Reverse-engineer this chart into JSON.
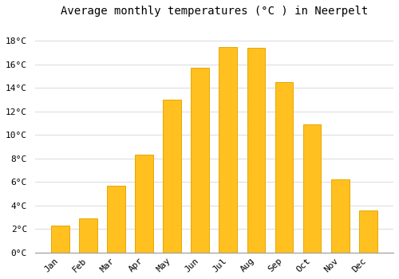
{
  "title": "Average monthly temperatures (°C ) in Neerpelt",
  "months": [
    "Jan",
    "Feb",
    "Mar",
    "Apr",
    "May",
    "Jun",
    "Jul",
    "Aug",
    "Sep",
    "Oct",
    "Nov",
    "Dec"
  ],
  "values": [
    2.3,
    2.9,
    5.7,
    8.3,
    13.0,
    15.7,
    17.5,
    17.4,
    14.5,
    10.9,
    6.2,
    3.6
  ],
  "bar_color": "#FFC020",
  "bar_edge_color": "#E8A800",
  "background_color": "#FFFFFF",
  "plot_bg_color": "#FFFFFF",
  "grid_color": "#DDDDDD",
  "ytick_labels": [
    "0°C",
    "2°C",
    "4°C",
    "6°C",
    "8°C",
    "10°C",
    "12°C",
    "14°C",
    "16°C",
    "18°C"
  ],
  "ytick_values": [
    0,
    2,
    4,
    6,
    8,
    10,
    12,
    14,
    16,
    18
  ],
  "ylim": [
    0,
    19.5
  ],
  "title_fontsize": 10,
  "tick_fontsize": 8,
  "font_family": "monospace",
  "bar_width": 0.65,
  "figsize": [
    5.0,
    3.5
  ],
  "dpi": 100
}
